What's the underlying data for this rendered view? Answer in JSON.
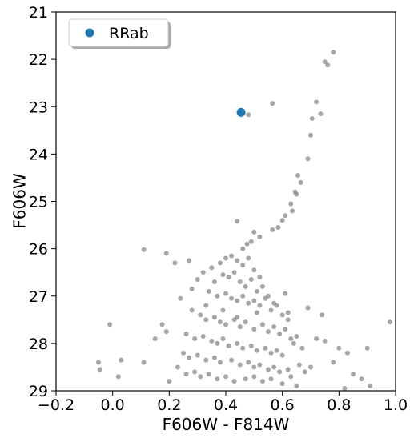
{
  "chart_data": {
    "type": "scatter",
    "xlabel": "F606W - F814W",
    "ylabel": "F606W",
    "xlim": [
      -0.2,
      1.0
    ],
    "xticks": [
      {
        "value": -0.2,
        "label": "−0.2"
      },
      {
        "value": 0,
        "label": "0.0"
      },
      {
        "value": 0.2,
        "label": "0.2"
      },
      {
        "value": 0.4,
        "label": "0.4"
      },
      {
        "value": 0.6,
        "label": "0.6"
      },
      {
        "value": 0.8,
        "label": "0.8"
      },
      {
        "value": 1.0,
        "label": "1.0"
      }
    ],
    "ylim": [
      29,
      21
    ],
    "yticks": [
      21,
      22,
      23,
      24,
      25,
      26,
      27,
      28,
      29
    ],
    "legend": "upper left",
    "series": [
      {
        "color": "#808080",
        "x": [
          0.78,
          0.75,
          0.76,
          0.72,
          0.565,
          0.48,
          0.735,
          0.705,
          0.7,
          0.69,
          0.655,
          0.665,
          0.645,
          0.65,
          0.63,
          0.635,
          0.61,
          0.6,
          0.585,
          0.565,
          0.52,
          0.49,
          0.44,
          0.5,
          0.475,
          0.46,
          0.11,
          0.19,
          0.22,
          0.27,
          -0.05,
          -0.045,
          -0.01,
          0.03,
          0.02,
          0.11,
          0.175,
          0.19,
          0.15,
          0.2,
          0.98,
          0.9,
          0.91,
          0.88,
          0.82,
          0.75,
          0.8,
          0.72,
          0.78,
          0.83,
          0.85,
          0.7,
          0.74,
          0.69,
          0.62,
          0.3,
          0.32,
          0.35,
          0.38,
          0.4,
          0.42,
          0.44,
          0.46,
          0.48,
          0.5,
          0.52,
          0.36,
          0.39,
          0.41,
          0.43,
          0.45,
          0.47,
          0.49,
          0.51,
          0.53,
          0.55,
          0.34,
          0.37,
          0.4,
          0.42,
          0.44,
          0.46,
          0.48,
          0.5,
          0.52,
          0.54,
          0.56,
          0.58,
          0.6,
          0.62,
          0.28,
          0.31,
          0.33,
          0.36,
          0.38,
          0.4,
          0.43,
          0.45,
          0.47,
          0.5,
          0.53,
          0.55,
          0.57,
          0.59,
          0.61,
          0.63,
          0.65,
          0.26,
          0.29,
          0.32,
          0.35,
          0.37,
          0.39,
          0.41,
          0.44,
          0.46,
          0.49,
          0.51,
          0.54,
          0.56,
          0.58,
          0.6,
          0.64,
          0.67,
          0.25,
          0.27,
          0.3,
          0.33,
          0.36,
          0.38,
          0.42,
          0.45,
          0.48,
          0.5,
          0.52,
          0.55,
          0.57,
          0.59,
          0.62,
          0.66,
          0.68,
          0.23,
          0.26,
          0.29,
          0.31,
          0.34,
          0.37,
          0.4,
          0.43,
          0.47,
          0.5,
          0.53,
          0.56,
          0.6,
          0.63,
          0.65,
          0.24,
          0.28,
          0.33,
          0.39,
          0.44,
          0.51,
          0.57,
          0.61
        ],
        "values": [
          21.85,
          22.05,
          22.12,
          22.9,
          22.93,
          23.17,
          23.15,
          23.25,
          23.6,
          24.1,
          24.45,
          24.6,
          24.8,
          24.85,
          25.05,
          25.2,
          25.3,
          25.4,
          25.55,
          25.6,
          25.75,
          25.85,
          25.42,
          25.65,
          25.9,
          26.0,
          26.02,
          26.1,
          26.3,
          26.25,
          28.4,
          28.55,
          27.6,
          28.35,
          28.7,
          28.4,
          27.6,
          27.75,
          27.9,
          28.8,
          27.55,
          28.1,
          28.9,
          28.75,
          28.95,
          27.95,
          28.1,
          27.9,
          28.4,
          28.2,
          28.65,
          28.5,
          27.4,
          27.25,
          27.5,
          26.65,
          26.5,
          26.4,
          26.3,
          26.2,
          26.15,
          26.25,
          26.35,
          26.2,
          26.45,
          26.6,
          26.7,
          26.55,
          26.6,
          26.5,
          26.7,
          26.8,
          26.65,
          26.9,
          26.8,
          27.0,
          26.9,
          27.0,
          26.95,
          27.05,
          27.1,
          27.0,
          27.15,
          27.1,
          27.2,
          27.05,
          27.3,
          27.2,
          27.4,
          27.35,
          27.3,
          27.4,
          27.5,
          27.45,
          27.55,
          27.6,
          27.5,
          27.65,
          27.55,
          27.7,
          27.6,
          27.75,
          27.65,
          27.8,
          27.7,
          27.9,
          27.85,
          27.8,
          27.9,
          27.85,
          27.95,
          28.0,
          27.9,
          28.05,
          28.0,
          28.1,
          28.05,
          28.15,
          28.1,
          28.2,
          28.15,
          28.25,
          28.0,
          28.1,
          28.2,
          28.3,
          28.25,
          28.35,
          28.3,
          28.4,
          28.35,
          28.45,
          28.4,
          28.5,
          28.45,
          28.55,
          28.5,
          28.6,
          28.55,
          28.45,
          28.6,
          28.5,
          28.65,
          28.6,
          28.7,
          28.65,
          28.75,
          28.7,
          28.8,
          28.75,
          28.7,
          28.8,
          28.75,
          28.85,
          28.7,
          28.9,
          27.05,
          26.85,
          27.2,
          27.3,
          27.45,
          27.35,
          27.15,
          26.95
        ]
      },
      {
        "name": "RRab",
        "color": "#1f77b4",
        "x": [
          0.454
        ],
        "values": [
          23.12
        ]
      }
    ]
  }
}
